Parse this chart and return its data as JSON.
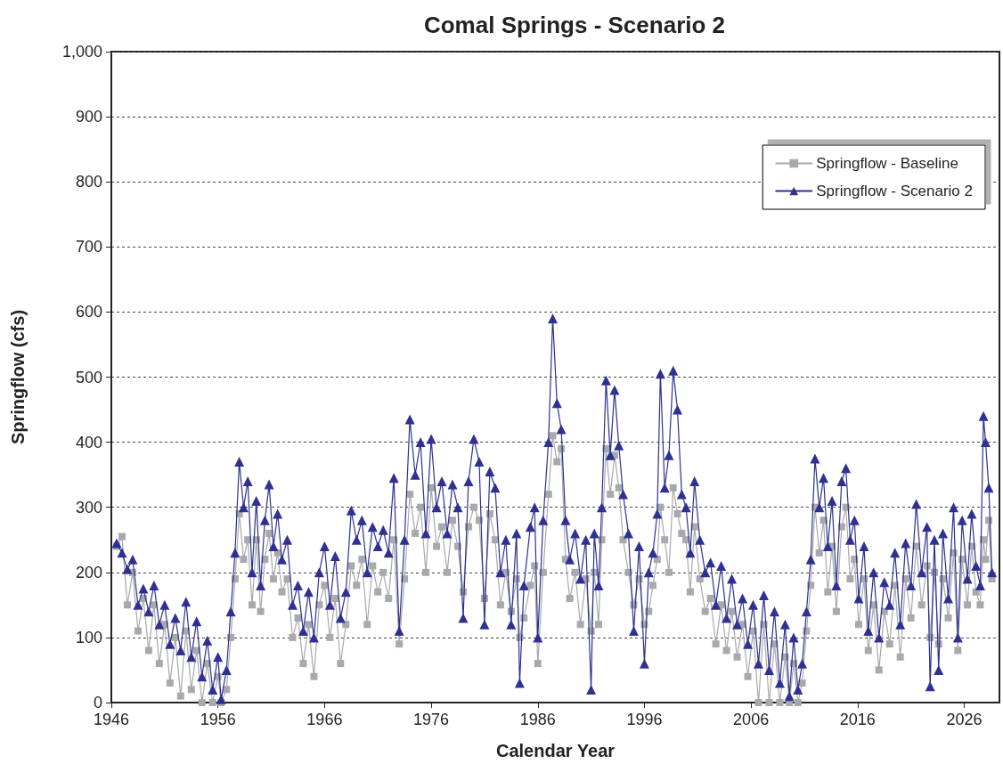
{
  "chart_data": {
    "type": "line",
    "title": "Comal Springs - Scenario 2",
    "xlabel": "Calendar Year",
    "ylabel": "Springflow (cfs)",
    "xlim": [
      1946,
      2029.3
    ],
    "xticks": [
      1946,
      1956,
      1966,
      1976,
      1986,
      1996,
      2006,
      2016,
      2026
    ],
    "ylim": [
      0,
      1000
    ],
    "yticks": [
      0,
      100,
      200,
      300,
      400,
      500,
      600,
      700,
      800,
      900,
      {
        "value": 1000,
        "label": "1,000"
      }
    ],
    "grid": "y",
    "legend": "top right",
    "line_style": "solid",
    "x": [
      1946.5,
      1947,
      1947.5,
      1948,
      1948.5,
      1949,
      1949.5,
      1950,
      1950.5,
      1951,
      1951.5,
      1952,
      1952.5,
      1953,
      1953.5,
      1954,
      1954.5,
      1955,
      1955.5,
      1956,
      1956.3,
      1956.8,
      1957.2,
      1957.6,
      1958,
      1958.4,
      1958.8,
      1959.2,
      1959.6,
      1960,
      1960.4,
      1960.8,
      1961.2,
      1961.6,
      1962,
      1962.5,
      1963,
      1963.5,
      1964,
      1964.5,
      1965,
      1965.5,
      1966,
      1966.5,
      1967,
      1967.5,
      1968,
      1968.5,
      1969,
      1969.5,
      1970,
      1970.5,
      1971,
      1971.5,
      1972,
      1972.5,
      1973,
      1973.5,
      1974,
      1974.5,
      1975,
      1975.5,
      1976,
      1976.5,
      1977,
      1977.5,
      1978,
      1978.5,
      1979,
      1979.5,
      1980,
      1980.5,
      1981,
      1981.5,
      1982,
      1982.5,
      1983,
      1983.5,
      1984,
      1984.3,
      1984.7,
      1985.3,
      1985.7,
      1986,
      1986.5,
      1987,
      1987.4,
      1987.8,
      1988.2,
      1988.6,
      1989,
      1989.5,
      1990,
      1990.5,
      1991,
      1991.3,
      1991.7,
      1992,
      1992.4,
      1992.8,
      1993.2,
      1993.6,
      1994,
      1994.5,
      1995,
      1995.5,
      1996,
      1996.4,
      1996.8,
      1997.2,
      1997.5,
      1997.9,
      1998.3,
      1998.7,
      1999.1,
      1999.5,
      1999.9,
      2000.3,
      2000.7,
      2001.2,
      2001.7,
      2002.2,
      2002.7,
      2003.2,
      2003.7,
      2004.2,
      2004.7,
      2005.2,
      2005.7,
      2006.2,
      2006.7,
      2007.2,
      2007.7,
      2008.2,
      2008.7,
      2009.2,
      2009.6,
      2010,
      2010.4,
      2010.8,
      2011.2,
      2011.6,
      2012,
      2012.4,
      2012.8,
      2013.2,
      2013.6,
      2014,
      2014.5,
      2014.9,
      2015.3,
      2015.7,
      2016.1,
      2016.6,
      2017,
      2017.5,
      2018,
      2018.5,
      2019,
      2019.5,
      2020,
      2020.5,
      2021,
      2021.5,
      2022,
      2022.5,
      2022.8,
      2023.2,
      2023.6,
      2024,
      2024.5,
      2025,
      2025.4,
      2025.8,
      2026.3,
      2026.7,
      2027.1,
      2027.5,
      2027.8,
      2028,
      2028.3,
      2028.6
    ],
    "series": [
      {
        "name": "Springflow - Baseline",
        "color": "#a7a9ac",
        "marker": "square",
        "values": [
          240,
          255,
          150,
          200,
          110,
          160,
          80,
          150,
          60,
          120,
          30,
          100,
          10,
          110,
          20,
          80,
          0,
          60,
          0,
          40,
          0,
          20,
          100,
          190,
          290,
          220,
          250,
          150,
          250,
          140,
          220,
          260,
          190,
          230,
          170,
          190,
          100,
          130,
          60,
          120,
          40,
          150,
          180,
          100,
          160,
          60,
          120,
          210,
          180,
          220,
          120,
          210,
          170,
          200,
          160,
          250,
          90,
          190,
          320,
          260,
          300,
          200,
          330,
          240,
          270,
          200,
          280,
          240,
          170,
          270,
          300,
          280,
          160,
          290,
          250,
          150,
          200,
          140,
          190,
          100,
          130,
          180,
          210,
          60,
          200,
          320,
          410,
          370,
          390,
          220,
          160,
          200,
          120,
          190,
          110,
          200,
          120,
          250,
          390,
          320,
          380,
          330,
          250,
          200,
          150,
          190,
          120,
          140,
          180,
          220,
          300,
          250,
          200,
          330,
          290,
          260,
          250,
          170,
          270,
          190,
          140,
          160,
          90,
          150,
          80,
          140,
          70,
          120,
          40,
          110,
          0,
          120,
          0,
          90,
          0,
          70,
          0,
          60,
          0,
          30,
          110,
          180,
          300,
          230,
          280,
          170,
          240,
          140,
          270,
          300,
          190,
          220,
          120,
          190,
          80,
          150,
          50,
          140,
          90,
          180,
          70,
          190,
          130,
          240,
          150,
          210,
          100,
          200,
          90,
          190,
          130,
          230,
          80,
          220,
          150,
          240,
          170,
          150,
          250,
          220,
          280,
          190
        ]
      },
      {
        "name": "Springflow - Scenario 2",
        "color": "#2e3192",
        "marker": "triangle",
        "values": [
          245,
          230,
          205,
          220,
          150,
          175,
          140,
          180,
          120,
          150,
          90,
          130,
          80,
          155,
          70,
          125,
          40,
          95,
          20,
          70,
          5,
          50,
          140,
          230,
          370,
          300,
          340,
          200,
          310,
          180,
          280,
          335,
          240,
          290,
          220,
          250,
          150,
          180,
          110,
          170,
          100,
          200,
          240,
          150,
          225,
          130,
          170,
          295,
          250,
          280,
          200,
          270,
          240,
          265,
          230,
          345,
          110,
          250,
          435,
          350,
          400,
          260,
          405,
          300,
          340,
          260,
          335,
          300,
          130,
          340,
          405,
          370,
          120,
          355,
          330,
          200,
          250,
          120,
          260,
          30,
          180,
          270,
          300,
          100,
          280,
          400,
          590,
          460,
          420,
          280,
          220,
          260,
          190,
          250,
          20,
          260,
          180,
          300,
          495,
          380,
          480,
          395,
          320,
          260,
          110,
          240,
          60,
          200,
          230,
          290,
          505,
          330,
          380,
          510,
          450,
          320,
          300,
          230,
          340,
          250,
          200,
          215,
          150,
          210,
          130,
          190,
          120,
          160,
          90,
          150,
          60,
          165,
          50,
          140,
          30,
          120,
          10,
          100,
          20,
          60,
          140,
          220,
          375,
          300,
          345,
          240,
          310,
          180,
          340,
          360,
          250,
          280,
          160,
          240,
          110,
          200,
          100,
          185,
          150,
          230,
          120,
          245,
          180,
          305,
          200,
          270,
          25,
          250,
          50,
          260,
          160,
          300,
          100,
          280,
          190,
          290,
          210,
          180,
          440,
          400,
          330,
          200
        ]
      }
    ]
  }
}
